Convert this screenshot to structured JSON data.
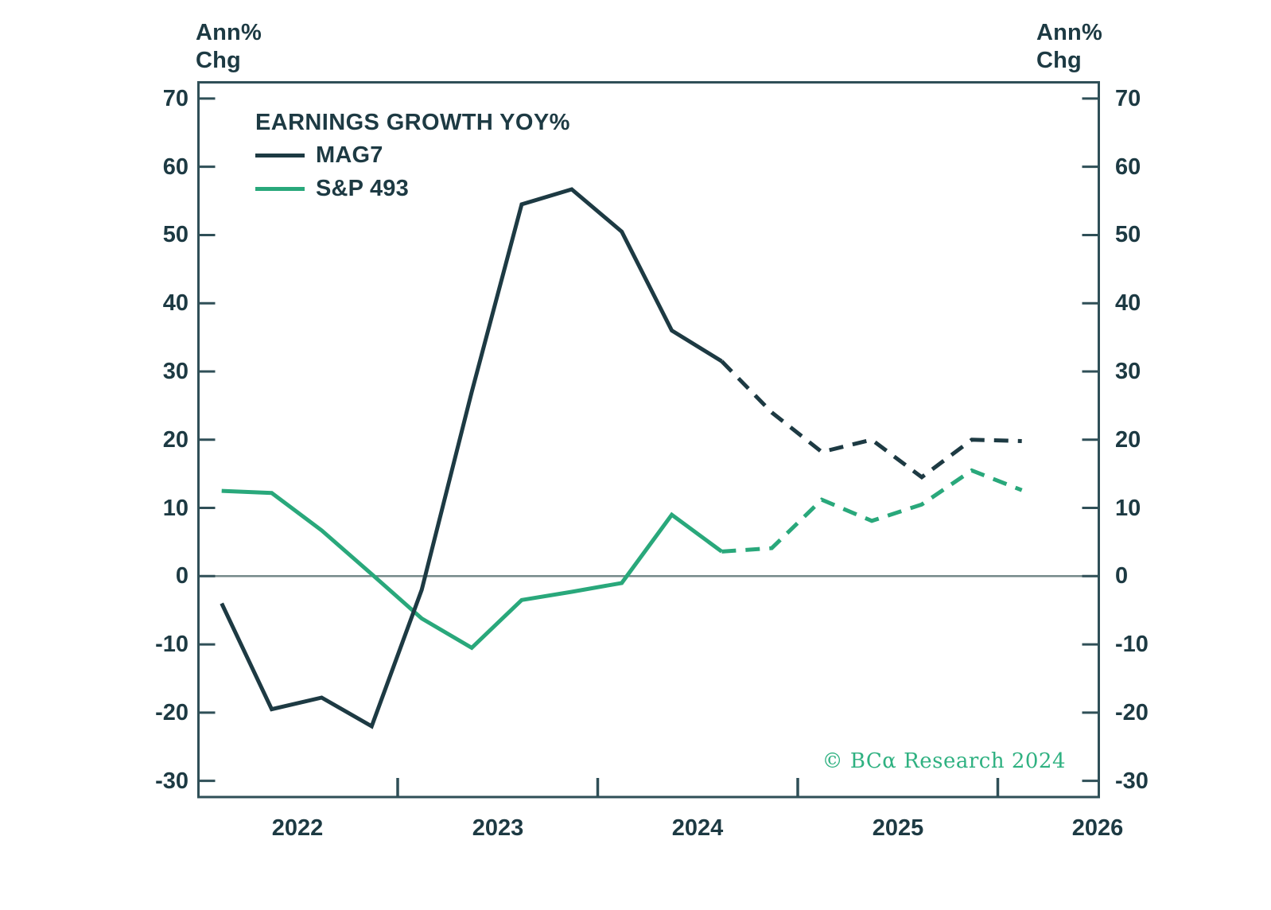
{
  "watermark": {
    "text": "© BCα Research 2024",
    "color": "#2fb181"
  },
  "chart_data": {
    "type": "line",
    "title": "EARNINGS GROWTH YOY%",
    "legend_position": "top-left-inside",
    "grid": "off",
    "zero_line": true,
    "forecast_style": "dashed",
    "y_axis": {
      "title_lines": [
        "Ann%",
        "Chg"
      ],
      "ticks": [
        70,
        60,
        50,
        40,
        30,
        20,
        10,
        0,
        -10,
        -20,
        -30
      ],
      "range": [
        -32.4,
        72.6
      ],
      "mirrored_right": true
    },
    "x_axis": {
      "year_labels": [
        "2022",
        "2023",
        "2024",
        "2025",
        "2026"
      ],
      "year_label_centers": [
        2022.5,
        2023.5,
        2024.5,
        2025.5,
        2026.5
      ],
      "boundary_ticks": [
        2023,
        2024,
        2025,
        2026
      ],
      "range_years": [
        2022.0,
        2026.5
      ]
    },
    "x_quarters": [
      "2022 Q1",
      "2022 Q2",
      "2022 Q3",
      "2022 Q4",
      "2023 Q1",
      "2023 Q2",
      "2023 Q3",
      "2023 Q4",
      "2024 Q1",
      "2024 Q2",
      "2024 Q3",
      "2024 Q4",
      "2025 Q1",
      "2025 Q2",
      "2025 Q3",
      "2025 Q4",
      "2026 Q1"
    ],
    "x_values": [
      2022.12,
      2022.37,
      2022.62,
      2022.87,
      2023.12,
      2023.37,
      2023.62,
      2023.87,
      2024.12,
      2024.37,
      2024.62,
      2024.87,
      2025.12,
      2025.37,
      2025.62,
      2025.87,
      2026.12
    ],
    "series": [
      {
        "name": "MAG7",
        "color": "#1d3a43",
        "solid_through_index": 10,
        "values": [
          -4.0,
          -19.5,
          -17.8,
          -22.0,
          -2.0,
          27.0,
          54.5,
          56.7,
          50.5,
          36.0,
          31.5,
          24.0,
          18.2,
          20.0,
          14.5,
          20.0,
          19.8
        ]
      },
      {
        "name": "S&P 493",
        "color": "#29a87b",
        "solid_through_index": 10,
        "values": [
          12.5,
          12.2,
          6.7,
          0.3,
          -6.2,
          -10.5,
          -3.5,
          -2.3,
          -1.0,
          9.0,
          3.6,
          4.1,
          11.2,
          8.1,
          10.5,
          15.5,
          12.6
        ]
      }
    ],
    "colors": {
      "axis_border": "#2f4f57",
      "zero_line": "#75898a",
      "text": "#1d3a43"
    }
  }
}
